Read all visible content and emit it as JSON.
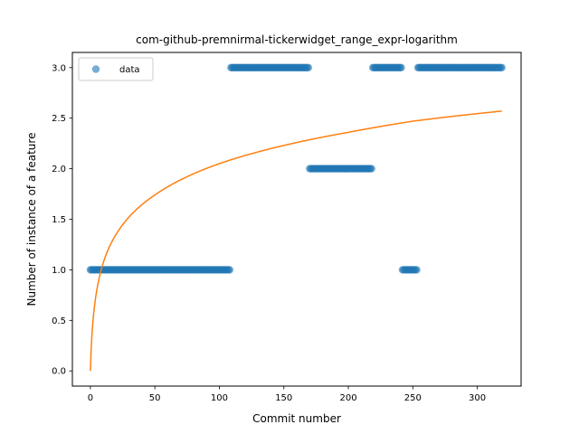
{
  "chart_data": {
    "type": "scatter",
    "title": "com-github-premnirmal-tickerwidget_range_expr-logarithm",
    "xlabel": "Commit number",
    "ylabel": "Number of instance of a feature",
    "xlim": [
      -13.95,
      333.95
    ],
    "ylim": [
      -0.15,
      3.15
    ],
    "xticks": [
      0,
      50,
      100,
      150,
      200,
      250,
      300
    ],
    "yticks": [
      0.0,
      0.5,
      1.0,
      1.5,
      2.0,
      2.5,
      3.0
    ],
    "xtick_labels": [
      "0",
      "50",
      "100",
      "150",
      "200",
      "250",
      "300"
    ],
    "ytick_labels": [
      "0.0",
      "0.5",
      "1.0",
      "1.5",
      "2.0",
      "2.5",
      "3.0"
    ],
    "grid": false,
    "legend": {
      "placement": "top-left",
      "entries": [
        "data"
      ]
    },
    "series": [
      {
        "name": "data",
        "kind": "scatter",
        "color": "#1f77b4",
        "alpha": 0.6,
        "segments": [
          {
            "x_start": 0,
            "x_end": 108,
            "y": 1
          },
          {
            "x_start": 109,
            "x_end": 169,
            "y": 3
          },
          {
            "x_start": 170,
            "x_end": 218,
            "y": 2
          },
          {
            "x_start": 219,
            "x_end": 241,
            "y": 3
          },
          {
            "x_start": 242,
            "x_end": 253,
            "y": 1
          },
          {
            "x_start": 254,
            "x_end": 319,
            "y": 3
          }
        ]
      },
      {
        "kind": "line",
        "color": "#ff7f0e",
        "model": "logarithm",
        "x_range": [
          0,
          319
        ],
        "points": [
          [
            0,
            0.0
          ],
          [
            10,
            1.07
          ],
          [
            50,
            1.74
          ],
          [
            100,
            2.05
          ],
          [
            150,
            2.23
          ],
          [
            200,
            2.36
          ],
          [
            250,
            2.47
          ],
          [
            319,
            2.57
          ]
        ]
      }
    ]
  }
}
